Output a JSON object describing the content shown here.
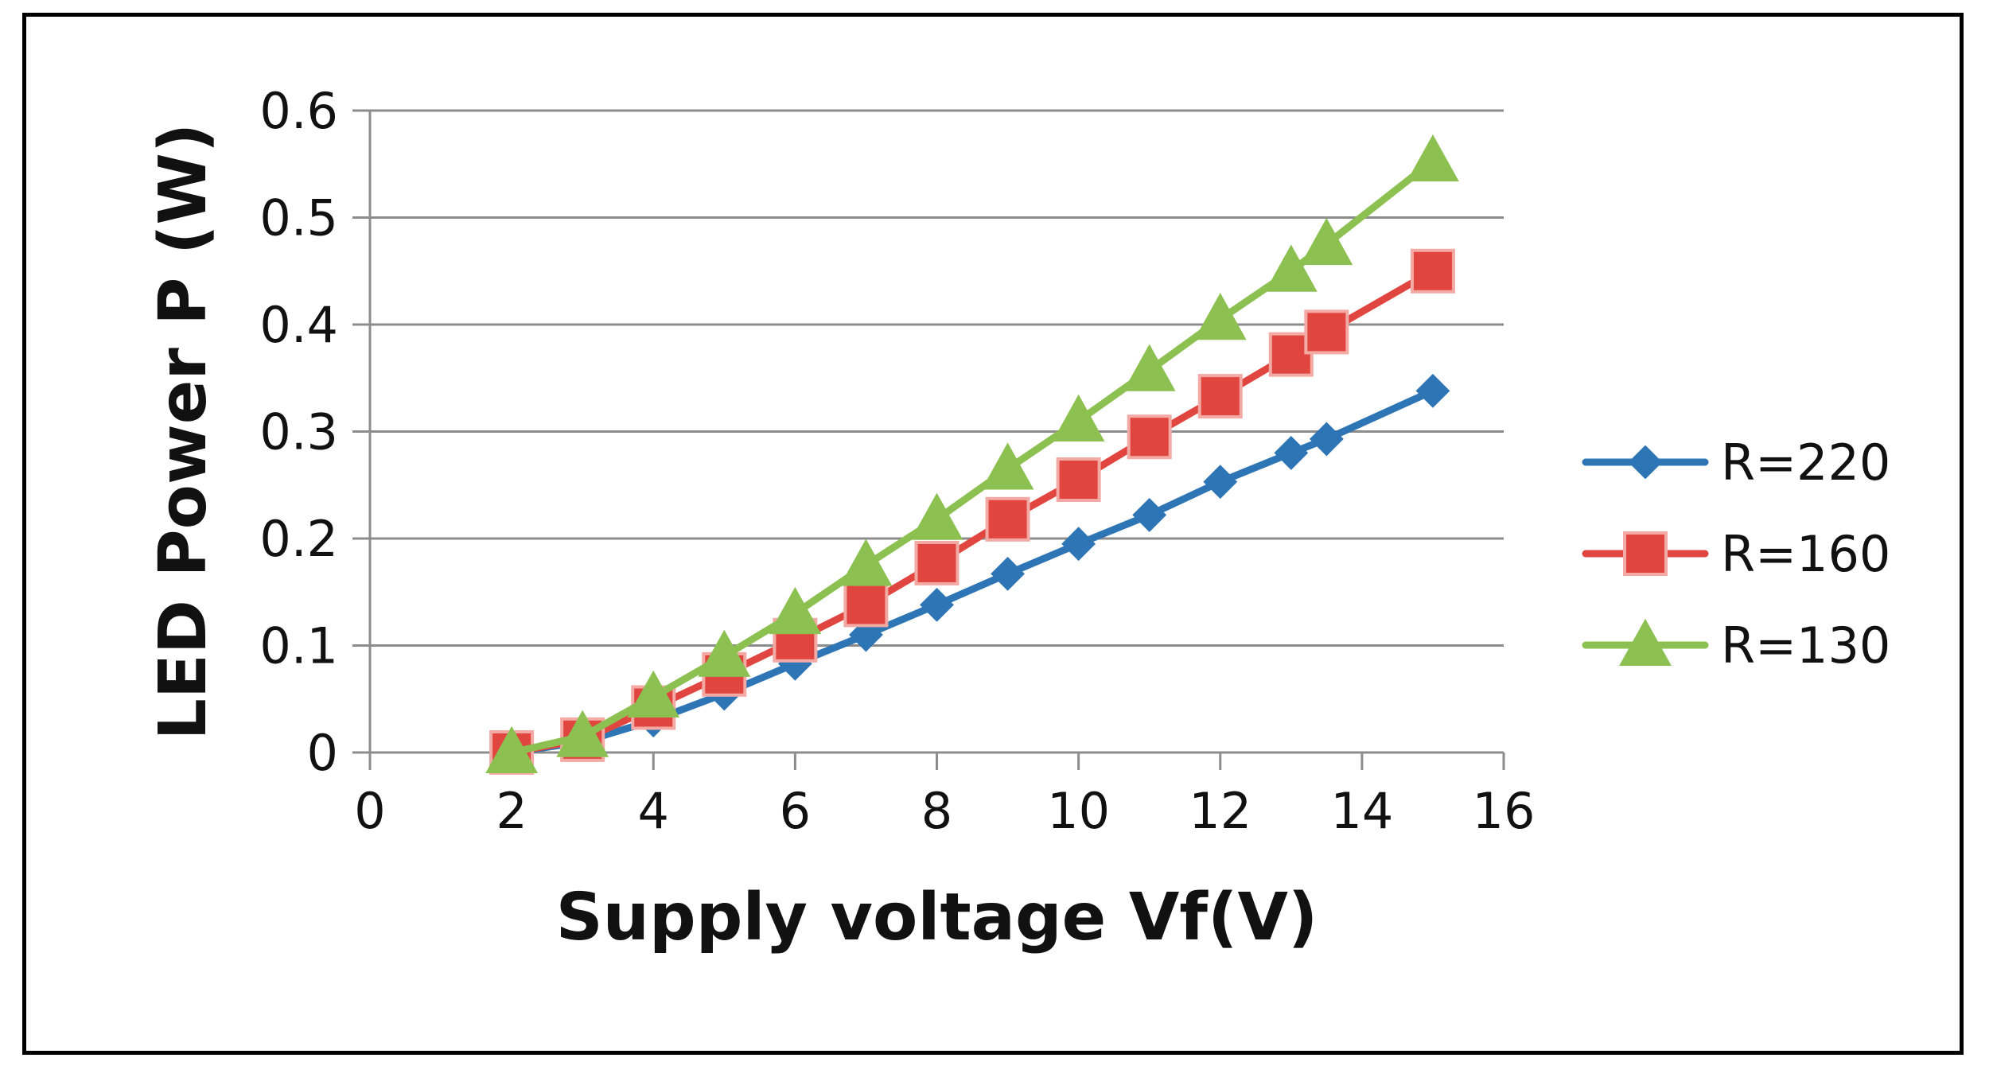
{
  "chart_data": {
    "type": "line",
    "title": "",
    "xlabel": "Supply voltage Vf(V)",
    "ylabel": "LED  Power P (W)",
    "xlim": [
      0,
      16
    ],
    "ylim": [
      0,
      0.6
    ],
    "x_ticks": [
      "0",
      "2",
      "4",
      "6",
      "8",
      "10",
      "12",
      "14",
      "16"
    ],
    "y_ticks": [
      "0",
      "0.1",
      "0.2",
      "0.3",
      "0.4",
      "0.5",
      "0.6"
    ],
    "grid": "horizontal",
    "legend_position": "right",
    "x": [
      2,
      3,
      4,
      5,
      6,
      7,
      8,
      9,
      10,
      11,
      12,
      13,
      13.5,
      15
    ],
    "series": [
      {
        "name": "R=220",
        "color": "#2e75b6",
        "marker": "diamond",
        "values": [
          0,
          0.01,
          0.03,
          0.055,
          0.083,
          0.11,
          0.138,
          0.167,
          0.195,
          0.222,
          0.253,
          0.28,
          0.293,
          0.338
        ]
      },
      {
        "name": "R=160",
        "color": "#e0463f",
        "marker": "square",
        "values": [
          0,
          0.012,
          0.042,
          0.073,
          0.105,
          0.138,
          0.177,
          0.218,
          0.255,
          0.295,
          0.333,
          0.372,
          0.393,
          0.45
        ]
      },
      {
        "name": "R=130",
        "color": "#8cc152",
        "marker": "triangle",
        "values": [
          0,
          0.015,
          0.052,
          0.09,
          0.13,
          0.175,
          0.218,
          0.265,
          0.31,
          0.357,
          0.405,
          0.45,
          0.475,
          0.553
        ]
      }
    ]
  }
}
